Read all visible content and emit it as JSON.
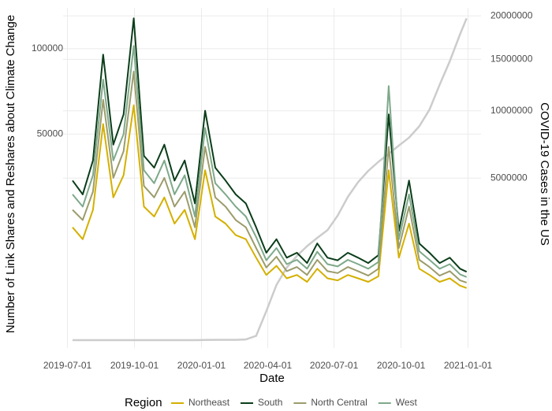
{
  "chart_data": {
    "type": "line",
    "x_label": "Date",
    "y_label": "Number of Link Shares and Reshares about Climate Change",
    "y2_label": "COVID-19 Cases in the US",
    "legend_title": "Region",
    "legend_position": "bottom",
    "y_scale": "sqrt",
    "y2_scale": "sqrt",
    "grid": true,
    "x": [
      "2019-07-08",
      "2019-07-22",
      "2019-08-05",
      "2019-08-19",
      "2019-09-02",
      "2019-09-16",
      "2019-09-30",
      "2019-10-14",
      "2019-10-28",
      "2019-11-11",
      "2019-11-25",
      "2019-12-09",
      "2019-12-23",
      "2020-01-06",
      "2020-01-20",
      "2020-02-03",
      "2020-02-17",
      "2020-03-02",
      "2020-03-16",
      "2020-03-30",
      "2020-04-13",
      "2020-04-27",
      "2020-05-11",
      "2020-05-25",
      "2020-06-08",
      "2020-06-22",
      "2020-07-06",
      "2020-07-20",
      "2020-08-03",
      "2020-08-17",
      "2020-08-31",
      "2020-09-14",
      "2020-09-28",
      "2020-10-12",
      "2020-10-26",
      "2020-11-09",
      "2020-11-23",
      "2020-12-07",
      "2020-12-21",
      "2020-12-30"
    ],
    "xlim": [
      "2019-06-25",
      "2021-01-08"
    ],
    "xticks": [
      "2019-07-01",
      "2019-10-01",
      "2020-01-01",
      "2020-04-01",
      "2020-07-01",
      "2020-10-01",
      "2021-01-01"
    ],
    "ylim": [
      0,
      130000
    ],
    "yticks": [
      50000,
      100000
    ],
    "y2lim": [
      0,
      21000000
    ],
    "y2ticks": [
      5000000,
      10000000,
      15000000,
      20000000
    ],
    "series": [
      {
        "name": "Northeast",
        "color": "#d4b000",
        "values": [
          15000,
          12000,
          20000,
          55000,
          24000,
          32000,
          65000,
          21000,
          18000,
          24000,
          16000,
          20000,
          12000,
          34000,
          18000,
          16000,
          13000,
          12000,
          8000,
          5000,
          6500,
          4500,
          5000,
          4000,
          6000,
          4500,
          4200,
          5000,
          4500,
          4000,
          4800,
          34000,
          8000,
          16000,
          6000,
          5000,
          4000,
          4500,
          3500,
          3200
        ]
      },
      {
        "name": "South",
        "color": "#0b3d1a",
        "values": [
          30000,
          25000,
          38000,
          96000,
          45000,
          60000,
          122000,
          40000,
          35000,
          45000,
          30000,
          38000,
          22000,
          62000,
          35000,
          30000,
          25000,
          22000,
          15000,
          9000,
          12000,
          8000,
          9000,
          7000,
          11000,
          8000,
          7500,
          9000,
          8000,
          7000,
          8500,
          60000,
          14000,
          30000,
          11000,
          9000,
          7000,
          8000,
          6000,
          5500
        ]
      },
      {
        "name": "North Central",
        "color": "#9c9c6c",
        "values": [
          20000,
          17000,
          26000,
          68000,
          31000,
          42000,
          85000,
          28000,
          24000,
          31000,
          21000,
          26000,
          15000,
          44000,
          24000,
          21000,
          17000,
          15000,
          10000,
          6200,
          8200,
          5600,
          6300,
          5000,
          7600,
          5600,
          5300,
          6300,
          5600,
          4900,
          6000,
          44000,
          10000,
          21000,
          7600,
          6300,
          4900,
          5600,
          4200,
          3900
        ]
      },
      {
        "name": "West",
        "color": "#7ea98a",
        "values": [
          25000,
          21000,
          32000,
          80000,
          38000,
          50000,
          102000,
          34000,
          29000,
          38000,
          25000,
          32000,
          18000,
          53000,
          29000,
          25000,
          21000,
          18000,
          12500,
          7500,
          10000,
          6800,
          7600,
          6000,
          9200,
          6800,
          6400,
          7600,
          6800,
          6000,
          7200,
          76000,
          12000,
          25000,
          9300,
          7600,
          6000,
          6800,
          5100,
          4700
        ]
      },
      {
        "name": "COVID-19 Cases",
        "color": "#cccccc",
        "axis": "y2",
        "values": [
          0,
          0,
          0,
          0,
          0,
          0,
          0,
          0,
          0,
          0,
          0,
          0,
          0,
          5,
          15,
          15,
          20,
          100,
          3500,
          160000,
          580000,
          1000000,
          1350000,
          1680000,
          1990000,
          2300000,
          2950000,
          3900000,
          4750000,
          5450000,
          6050000,
          6600000,
          7200000,
          7800000,
          8700000,
          10100000,
          12400000,
          14800000,
          17800000,
          19700000
        ]
      }
    ]
  }
}
